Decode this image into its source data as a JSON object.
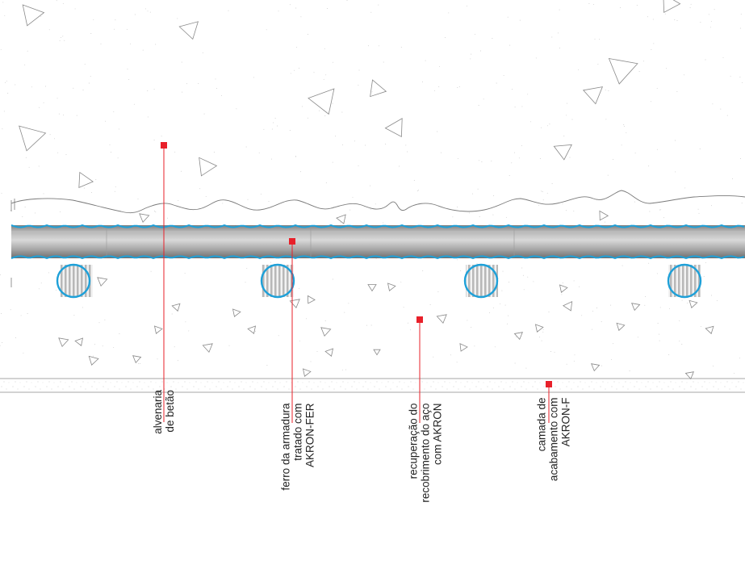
{
  "labels": {
    "concrete_masonry": "alvenaria\nde betão",
    "rebar_treated": "ferro da armadura\ntratado com\nAKRON-FER",
    "cover_recovery": "recuperação do\nrecobrimento do aço\ncom AKRON",
    "finish_layer": "camada de\nacabamento com\nAKRON-F"
  },
  "colors": {
    "marker": "#e8202a",
    "leader": "#e8202a",
    "coating": "#1ea0d8",
    "steel": "#9c9c9c",
    "outline": "#6f6f6f",
    "aggregate": "#8a8a8a"
  }
}
